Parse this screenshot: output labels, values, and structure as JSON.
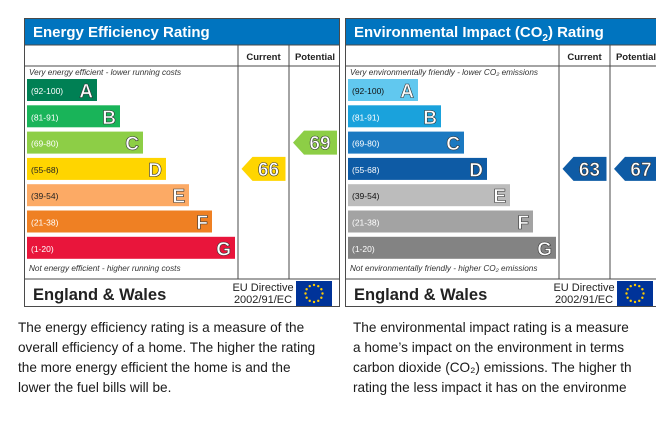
{
  "energy_efficiency": {
    "title": "Energy Efficiency Rating",
    "col_current": "Current",
    "col_potential": "Potential",
    "top_note": "Very energy efficient - lower running costs",
    "bottom_note": "Not energy efficient - higher running costs",
    "region": "England & Wales",
    "directive_line1": "EU Directive",
    "directive_line2": "2002/91/EC",
    "description": [
      "The energy efficiency rating is a measure of the",
      "overall efficiency of a home. The higher the rating",
      "the more energy efficient the home is and the",
      "lower the fuel bills will be."
    ]
  },
  "environmental_impact": {
    "title_prefix": "Environmental Impact (CO",
    "title_sub": "2",
    "title_suffix": ") Rating",
    "col_current": "Current",
    "col_potential": "Potential",
    "top_note": "Very environmentally friendly - lower CO₂ emissions",
    "bottom_note": "Not environmentally friendly - higher CO₂ emissions",
    "region": "England & Wales",
    "directive_line1": "EU Directive",
    "directive_line2": "2002/91/EC",
    "description": [
      "The environmental impact rating is a measure",
      "a home’s impact on the environment in terms",
      "carbon dioxide (CO₂) emissions. The higher th",
      "rating the less impact it has on the environme"
    ]
  },
  "chart_data": [
    {
      "type": "bar",
      "title": "Energy Efficiency Rating",
      "categories": [
        "A",
        "B",
        "C",
        "D",
        "E",
        "F",
        "G"
      ],
      "ranges": [
        "(92-100)",
        "(81-91)",
        "(69-80)",
        "(55-68)",
        "(39-54)",
        "(21-38)",
        "(1-20)"
      ],
      "colors": [
        "#008054",
        "#19b459",
        "#8dce46",
        "#ffd500",
        "#fcaa65",
        "#ef8023",
        "#e9153b"
      ],
      "current": 66,
      "current_band": "D",
      "current_color": "#ffd500",
      "potential": 69,
      "potential_band": "C",
      "potential_color": "#8dce46"
    },
    {
      "type": "bar",
      "title": "Environmental Impact (CO2) Rating",
      "categories": [
        "A",
        "B",
        "C",
        "D",
        "E",
        "F",
        "G"
      ],
      "ranges": [
        "(92-100)",
        "(81-91)",
        "(69-80)",
        "(55-68)",
        "(39-54)",
        "(21-38)",
        "(1-20)"
      ],
      "colors": [
        "#61c8ef",
        "#1aa2dc",
        "#1b79c1",
        "#0e5ba5",
        "#bcbcbc",
        "#a3a3a3",
        "#838383"
      ],
      "current": 63,
      "current_band": "D",
      "current_color": "#0e5ba5",
      "potential": 67,
      "potential_band": "D",
      "potential_color": "#0e5ba5"
    }
  ]
}
